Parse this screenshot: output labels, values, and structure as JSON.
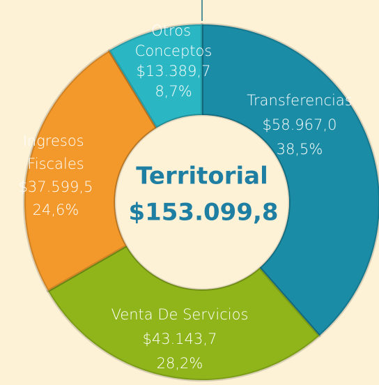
{
  "chart_data": {
    "type": "donut",
    "center_label": "Territorial",
    "total": 153099.8,
    "total_label": "$153.099,8",
    "categories": [
      "Transferencias",
      "Venta De Servicios",
      "Ingresos Fiscales",
      "Otros Conceptos"
    ],
    "values": [
      58967.0,
      43143.7,
      37599.5,
      13389.7
    ],
    "value_labels": [
      "$58.967,0",
      "$43.143,7",
      "$37.599,5",
      "$13.389,7"
    ],
    "percent_labels": [
      "38,5%",
      "28,2%",
      "24,6%",
      "8,7%"
    ],
    "colors": [
      "#1a8ca6",
      "#8fb51a",
      "#f3992b",
      "#2bb6c3"
    ]
  }
}
